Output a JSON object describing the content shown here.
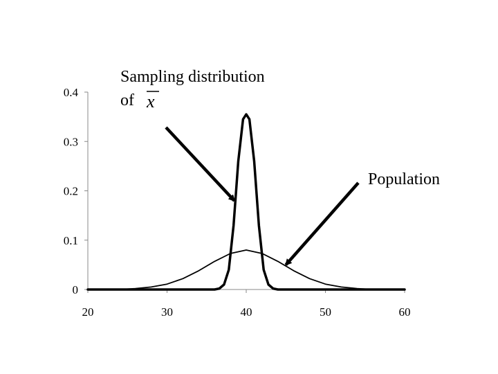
{
  "chart_data": {
    "type": "line",
    "title": "",
    "xlabel": "",
    "ylabel": "",
    "xlim": [
      20,
      60
    ],
    "ylim": [
      0,
      0.4
    ],
    "x_ticks": [
      "20",
      "30",
      "40",
      "50",
      "60"
    ],
    "y_ticks": [
      "0",
      "0.1",
      "0.2",
      "0.3",
      "0.4"
    ],
    "grid": false,
    "legend": "none",
    "series": [
      {
        "label": "Population",
        "x": [
          20,
          24,
          26,
          28,
          30,
          32,
          34,
          36,
          38,
          40,
          42,
          44,
          46,
          48,
          50,
          52,
          54,
          56,
          60
        ],
        "y": [
          0,
          0,
          0.002,
          0.005,
          0.011,
          0.022,
          0.038,
          0.057,
          0.073,
          0.08,
          0.073,
          0.057,
          0.038,
          0.022,
          0.011,
          0.005,
          0.002,
          0,
          0
        ],
        "color": "#000000"
      },
      {
        "label": "Sampling distribution of x̄",
        "x": [
          20,
          36,
          36.6,
          37.2,
          37.8,
          38.4,
          39,
          39.6,
          40,
          40.4,
          41,
          41.6,
          42.2,
          42.8,
          43.4,
          44,
          60
        ],
        "y": [
          0,
          0,
          0.002,
          0.01,
          0.04,
          0.13,
          0.26,
          0.345,
          0.355,
          0.345,
          0.26,
          0.13,
          0.04,
          0.01,
          0.002,
          0,
          0
        ],
        "color": "#000000"
      }
    ],
    "annotations": [
      {
        "text_line1": "Sampling distribution",
        "text_line2": "of",
        "symbol": "x",
        "arrow_to": [
          38.5,
          0.18
        ]
      },
      {
        "text": "Population",
        "arrow_to": [
          45,
          0.05
        ]
      }
    ]
  }
}
